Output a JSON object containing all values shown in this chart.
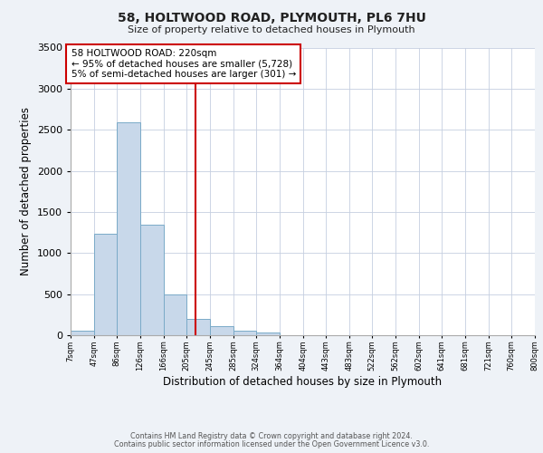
{
  "title": "58, HOLTWOOD ROAD, PLYMOUTH, PL6 7HU",
  "subtitle": "Size of property relative to detached houses in Plymouth",
  "xlabel": "Distribution of detached houses by size in Plymouth",
  "ylabel": "Number of detached properties",
  "bin_edges": [
    7,
    47,
    86,
    126,
    166,
    205,
    245,
    285,
    324,
    364,
    404,
    443,
    483,
    522,
    562,
    602,
    641,
    681,
    721,
    760,
    800
  ],
  "bin_counts": [
    50,
    1230,
    2590,
    1350,
    500,
    200,
    110,
    50,
    30,
    5,
    0,
    0,
    0,
    0,
    0,
    0,
    0,
    0,
    0,
    0
  ],
  "bar_color": "#c8d8ea",
  "bar_edge_color": "#7aaac8",
  "property_line_x": 220,
  "property_line_color": "#cc0000",
  "annotation_box_color": "#cc0000",
  "annotation_text_line1": "58 HOLTWOOD ROAD: 220sqm",
  "annotation_text_line2": "← 95% of detached houses are smaller (5,728)",
  "annotation_text_line3": "5% of semi-detached houses are larger (301) →",
  "ylim": [
    0,
    3500
  ],
  "tick_labels": [
    "7sqm",
    "47sqm",
    "86sqm",
    "126sqm",
    "166sqm",
    "205sqm",
    "245sqm",
    "285sqm",
    "324sqm",
    "364sqm",
    "404sqm",
    "443sqm",
    "483sqm",
    "522sqm",
    "562sqm",
    "602sqm",
    "641sqm",
    "681sqm",
    "721sqm",
    "760sqm",
    "800sqm"
  ],
  "footnote1": "Contains HM Land Registry data © Crown copyright and database right 2024.",
  "footnote2": "Contains public sector information licensed under the Open Government Licence v3.0.",
  "background_color": "#eef2f7",
  "plot_background_color": "#ffffff",
  "grid_color": "#c5cfe0"
}
